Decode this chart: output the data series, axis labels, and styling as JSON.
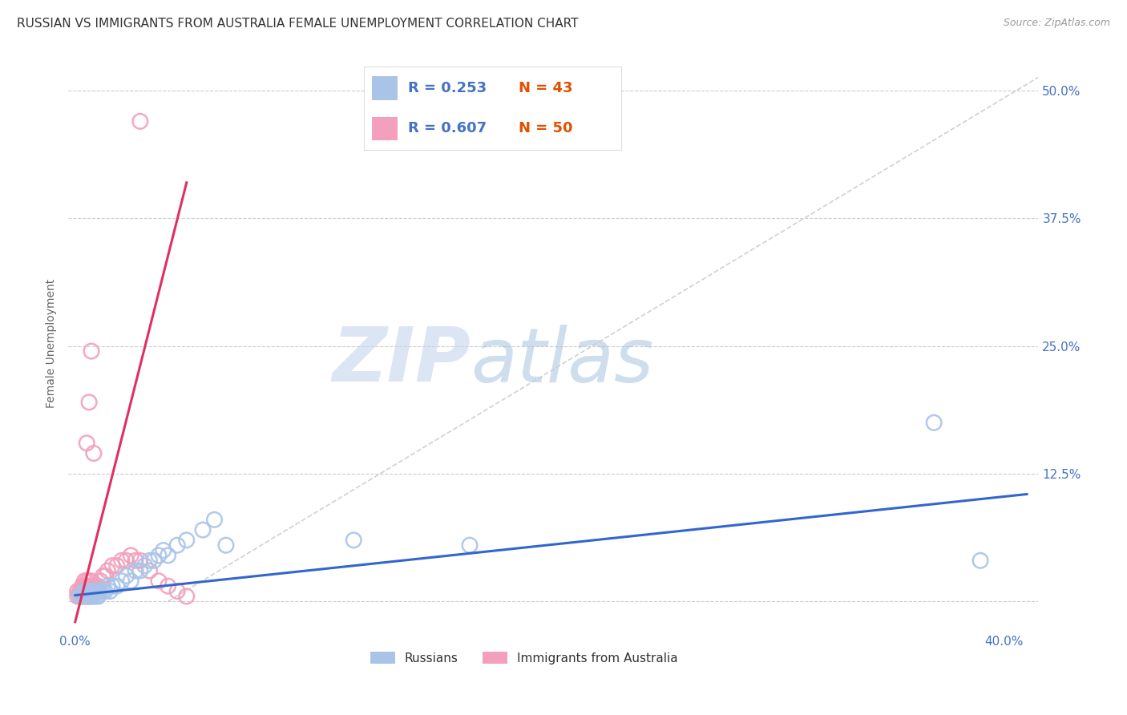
{
  "title": "RUSSIAN VS IMMIGRANTS FROM AUSTRALIA FEMALE UNEMPLOYMENT CORRELATION CHART",
  "source": "Source: ZipAtlas.com",
  "ylabel": "Female Unemployment",
  "xlim": [
    -0.003,
    0.415
  ],
  "ylim": [
    -0.03,
    0.535
  ],
  "russians_color": "#aac4e8",
  "australia_color": "#f2a0bc",
  "russian_line_color": "#3366cc",
  "australia_line_color": "#e03060",
  "diagonal_line_color": "#cccccc",
  "legend_r1": "R = 0.253",
  "legend_n1": "N = 43",
  "legend_r2": "R = 0.607",
  "legend_n2": "N = 50",
  "watermark_zip": "ZIP",
  "watermark_atlas": "atlas",
  "background_color": "#ffffff",
  "grid_color": "#cccccc",
  "tick_color": "#4472c4",
  "title_color": "#333333",
  "source_color": "#999999",
  "legend_text_color": "#333333",
  "legend_value_color": "#4472c4",
  "russians_x": [
    0.002,
    0.003,
    0.004,
    0.004,
    0.005,
    0.005,
    0.006,
    0.006,
    0.007,
    0.007,
    0.008,
    0.008,
    0.009,
    0.009,
    0.01,
    0.01,
    0.011,
    0.012,
    0.013,
    0.014,
    0.015,
    0.016,
    0.018,
    0.02,
    0.022,
    0.024,
    0.026,
    0.028,
    0.03,
    0.032,
    0.034,
    0.036,
    0.038,
    0.04,
    0.044,
    0.048,
    0.055,
    0.06,
    0.065,
    0.12,
    0.17,
    0.37,
    0.39
  ],
  "russians_y": [
    0.005,
    0.005,
    0.005,
    0.01,
    0.005,
    0.01,
    0.005,
    0.01,
    0.005,
    0.01,
    0.005,
    0.01,
    0.005,
    0.01,
    0.005,
    0.01,
    0.01,
    0.01,
    0.01,
    0.015,
    0.01,
    0.015,
    0.015,
    0.02,
    0.025,
    0.02,
    0.03,
    0.03,
    0.035,
    0.04,
    0.04,
    0.045,
    0.05,
    0.045,
    0.055,
    0.06,
    0.07,
    0.08,
    0.055,
    0.06,
    0.055,
    0.175,
    0.04
  ],
  "australia_x": [
    0.001,
    0.001,
    0.002,
    0.002,
    0.003,
    0.003,
    0.003,
    0.004,
    0.004,
    0.004,
    0.004,
    0.005,
    0.005,
    0.005,
    0.005,
    0.006,
    0.006,
    0.006,
    0.006,
    0.007,
    0.007,
    0.007,
    0.007,
    0.008,
    0.008,
    0.009,
    0.009,
    0.01,
    0.01,
    0.011,
    0.012,
    0.013,
    0.014,
    0.016,
    0.018,
    0.02,
    0.022,
    0.024,
    0.026,
    0.028,
    0.032,
    0.036,
    0.04,
    0.044,
    0.048,
    0.005,
    0.006,
    0.007,
    0.008,
    0.028
  ],
  "australia_y": [
    0.005,
    0.01,
    0.005,
    0.01,
    0.005,
    0.01,
    0.015,
    0.005,
    0.01,
    0.015,
    0.02,
    0.005,
    0.01,
    0.015,
    0.02,
    0.005,
    0.01,
    0.015,
    0.02,
    0.005,
    0.01,
    0.015,
    0.02,
    0.01,
    0.015,
    0.01,
    0.015,
    0.01,
    0.015,
    0.02,
    0.025,
    0.025,
    0.03,
    0.035,
    0.035,
    0.04,
    0.04,
    0.045,
    0.04,
    0.04,
    0.03,
    0.02,
    0.015,
    0.01,
    0.005,
    0.155,
    0.195,
    0.245,
    0.145,
    0.47
  ],
  "rus_trend_x": [
    0.0,
    0.41
  ],
  "rus_trend_y": [
    0.006,
    0.105
  ],
  "aus_trend_x": [
    0.0,
    0.048
  ],
  "aus_trend_y": [
    -0.02,
    0.41
  ]
}
